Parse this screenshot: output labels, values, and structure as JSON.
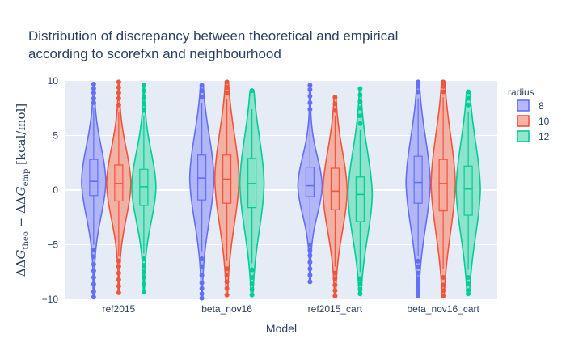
{
  "chart_data": {
    "type": "violin",
    "title": [
      "Distribution of discrepancy between theoretical and empirical",
      "according to scorefxn and neighbourhood"
    ],
    "xlabel": "Model",
    "ylabel": {
      "delta": "ΔΔ",
      "g1": "G",
      "sub1": "theo",
      "minus": " − ",
      "g2": "G",
      "sub2": "emp",
      "unit": " [kcal/mol]"
    },
    "ylim": [
      -10,
      10
    ],
    "yticks": [
      {
        "value": -10,
        "label": "−10"
      },
      {
        "value": -5,
        "label": "−5"
      },
      {
        "value": 0,
        "label": "0"
      },
      {
        "value": 5,
        "label": "5"
      },
      {
        "value": 10,
        "label": "10"
      }
    ],
    "categories": [
      "ref2015",
      "beta_nov16",
      "ref2015_cart",
      "beta_nov16_cart"
    ],
    "legend": {
      "title": "radius",
      "placement": "top-right"
    },
    "grid": true,
    "series": [
      {
        "name": "8",
        "color": "#636efa",
        "fill": "#a9adf7",
        "stats": [
          {
            "q1": -0.5,
            "median": 0.8,
            "q3": 2.8,
            "lower_whisker": -5.0,
            "upper_whisker": 7.5,
            "outliers_low": [
              -5.5,
              -6.1,
              -6.8,
              -7.4,
              -8.0,
              -8.6,
              -9.3,
              -9.8
            ],
            "outliers_high": [
              8.0,
              8.4,
              8.9,
              9.3,
              9.7
            ]
          },
          {
            "q1": -0.9,
            "median": 1.1,
            "q3": 3.2,
            "lower_whisker": -5.6,
            "upper_whisker": 8.0,
            "outliers_low": [
              -6.3,
              -7.0,
              -7.8,
              -8.5,
              -9.0,
              -9.5,
              -9.9
            ],
            "outliers_high": [
              8.5,
              9.1,
              9.6
            ]
          },
          {
            "q1": -0.6,
            "median": 0.4,
            "q3": 2.1,
            "lower_whisker": -4.5,
            "upper_whisker": 6.8,
            "outliers_low": [
              -5.0,
              -5.5,
              -6.0,
              -6.6,
              -7.2,
              -7.8,
              -8.4
            ],
            "outliers_high": [
              7.4,
              8.0,
              8.6,
              9.2,
              9.6
            ]
          },
          {
            "q1": -1.2,
            "median": 0.7,
            "q3": 3.1,
            "lower_whisker": -6.0,
            "upper_whisker": 8.4,
            "outliers_low": [
              -6.5,
              -7.0,
              -7.6,
              -8.1,
              -8.5,
              -8.9,
              -9.3,
              -9.7
            ],
            "outliers_high": [
              9.0,
              9.5,
              9.9
            ]
          }
        ]
      },
      {
        "name": "10",
        "color": "#ef553b",
        "fill": "#f6a797",
        "stats": [
          {
            "q1": -1.0,
            "median": 0.6,
            "q3": 2.3,
            "lower_whisker": -6.0,
            "upper_whisker": 7.2,
            "outliers_low": [
              -6.5,
              -7.0,
              -7.6,
              -8.2,
              -8.8,
              -9.4
            ],
            "outliers_high": [
              7.8,
              8.4,
              8.9,
              9.4,
              9.9
            ]
          },
          {
            "q1": -1.2,
            "median": 1.0,
            "q3": 3.2,
            "lower_whisker": -6.5,
            "upper_whisker": 8.3,
            "outliers_low": [
              -7.2,
              -7.8,
              -8.4,
              -9.0,
              -9.6
            ],
            "outliers_high": [
              8.9,
              9.4,
              9.9
            ]
          },
          {
            "q1": -1.8,
            "median": -0.1,
            "q3": 2.0,
            "lower_whisker": -7.0,
            "upper_whisker": 6.8,
            "outliers_low": [
              -7.6,
              -8.1,
              -8.7,
              -9.2,
              -9.7
            ],
            "outliers_high": [
              7.3,
              7.9,
              8.5
            ]
          },
          {
            "q1": -1.9,
            "median": 0.6,
            "q3": 2.8,
            "lower_whisker": -7.2,
            "upper_whisker": 8.5,
            "outliers_low": [
              -8.0,
              -8.7,
              -9.2,
              -9.7
            ],
            "outliers_high": [
              9.0,
              9.5,
              9.9
            ]
          }
        ]
      },
      {
        "name": "12",
        "color": "#00cc96",
        "fill": "#7fe2c4",
        "stats": [
          {
            "q1": -1.4,
            "median": 0.3,
            "q3": 1.9,
            "lower_whisker": -5.8,
            "upper_whisker": 6.8,
            "outliers_low": [
              -6.3,
              -6.9,
              -7.5,
              -8.0,
              -8.6,
              -9.3
            ],
            "outliers_high": [
              7.3,
              7.9,
              8.5,
              9.1,
              9.6
            ]
          },
          {
            "q1": -1.6,
            "median": 0.6,
            "q3": 2.9,
            "lower_whisker": -6.7,
            "upper_whisker": 7.4,
            "outliers_low": [
              -7.3,
              -8.0,
              -8.6,
              -9.1,
              -9.6
            ],
            "outliers_high": [
              9.1
            ]
          },
          {
            "q1": -2.9,
            "median": -0.4,
            "q3": 1.2,
            "lower_whisker": -7.5,
            "upper_whisker": 5.5,
            "outliers_low": [
              -8.1,
              -8.6,
              -9.1,
              -9.5
            ],
            "outliers_high": [
              6.1,
              6.8,
              7.5,
              8.1,
              8.7,
              9.3
            ]
          },
          {
            "q1": -2.3,
            "median": 0.1,
            "q3": 2.2,
            "lower_whisker": -7.3,
            "upper_whisker": 7.2,
            "outliers_low": [
              -8.0,
              -8.6,
              -9.2,
              -9.5
            ],
            "outliers_high": [
              7.8,
              8.4,
              9.0
            ]
          }
        ]
      }
    ]
  }
}
